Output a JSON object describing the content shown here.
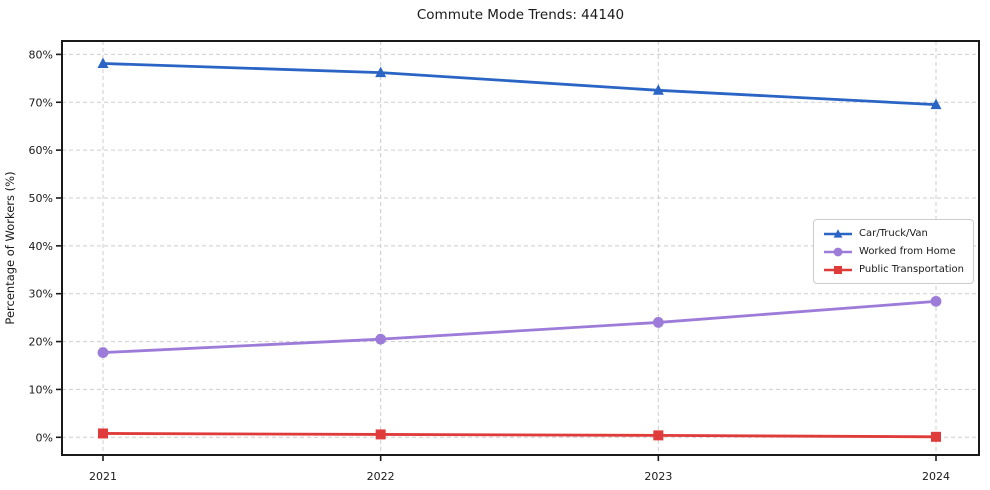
{
  "chart_data": {
    "type": "line",
    "title": "Commute Mode Trends: 44140",
    "xlabel": "",
    "ylabel": "Percentage of Workers (%)",
    "categories": [
      "2021",
      "2022",
      "2023",
      "2024"
    ],
    "series": [
      {
        "name": "Car/Truck/Van",
        "values": [
          78.1,
          76.2,
          72.5,
          69.5
        ],
        "color": "#2a64c4",
        "marker": "triangle"
      },
      {
        "name": "Worked from Home",
        "values": [
          17.7,
          20.5,
          24.0,
          28.4
        ],
        "color": "#9d7bd8",
        "marker": "circle"
      },
      {
        "name": "Public Transportation",
        "values": [
          0.8,
          0.6,
          0.4,
          0.1
        ],
        "color": "#e03b3b",
        "marker": "square"
      }
    ],
    "ylim": [
      -3.7,
      82.8
    ],
    "yticks": [
      0,
      10,
      20,
      30,
      40,
      50,
      60,
      70,
      80
    ],
    "ytick_suffix": "%",
    "grid": true,
    "grid_style": "dashed",
    "legend_position": "center-right",
    "axis_color": "#1a1a1a",
    "grid_color": "#cdcdcd",
    "background_color": "#ffffff"
  }
}
